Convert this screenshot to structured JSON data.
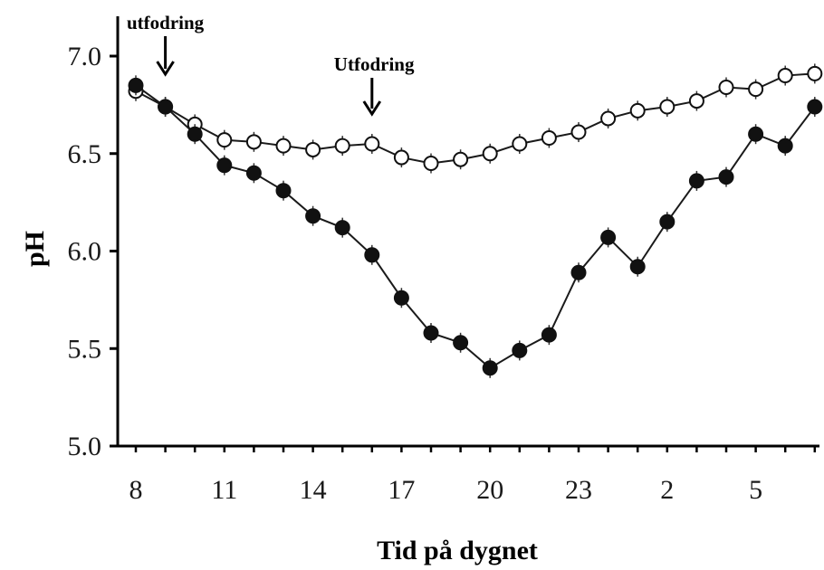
{
  "chart_data": {
    "type": "line",
    "xlabel": "Tid på dygnet",
    "ylabel": "pH",
    "ylim": [
      5.0,
      7.0
    ],
    "yticks": [
      "5.0",
      "5.5",
      "6.0",
      "6.5",
      "7.0"
    ],
    "xticks": [
      "8",
      "11",
      "14",
      "17",
      "20",
      "23",
      "2",
      "5"
    ],
    "x": [
      "8",
      "9",
      "10",
      "11",
      "12",
      "13",
      "14",
      "15",
      "16",
      "17",
      "18",
      "19",
      "20",
      "21",
      "22",
      "23",
      "24",
      "1",
      "2",
      "3",
      "4",
      "5",
      "6",
      "7"
    ],
    "series": [
      {
        "marker": "open-circle",
        "values": [
          6.82,
          6.74,
          6.65,
          6.57,
          6.56,
          6.54,
          6.52,
          6.54,
          6.55,
          6.48,
          6.45,
          6.47,
          6.5,
          6.55,
          6.58,
          6.61,
          6.68,
          6.72,
          6.74,
          6.77,
          6.84,
          6.83,
          6.9,
          6.91
        ]
      },
      {
        "marker": "filled-circle",
        "values": [
          6.85,
          6.74,
          6.6,
          6.44,
          6.4,
          6.31,
          6.18,
          6.12,
          5.98,
          5.76,
          5.58,
          5.53,
          5.4,
          5.49,
          5.57,
          5.89,
          6.07,
          5.92,
          6.15,
          6.36,
          6.38,
          6.6,
          6.54,
          6.74
        ]
      }
    ],
    "annotations": [
      {
        "text": "utfodring",
        "x": "9"
      },
      {
        "text": "Utfodring",
        "x": "16"
      }
    ]
  }
}
